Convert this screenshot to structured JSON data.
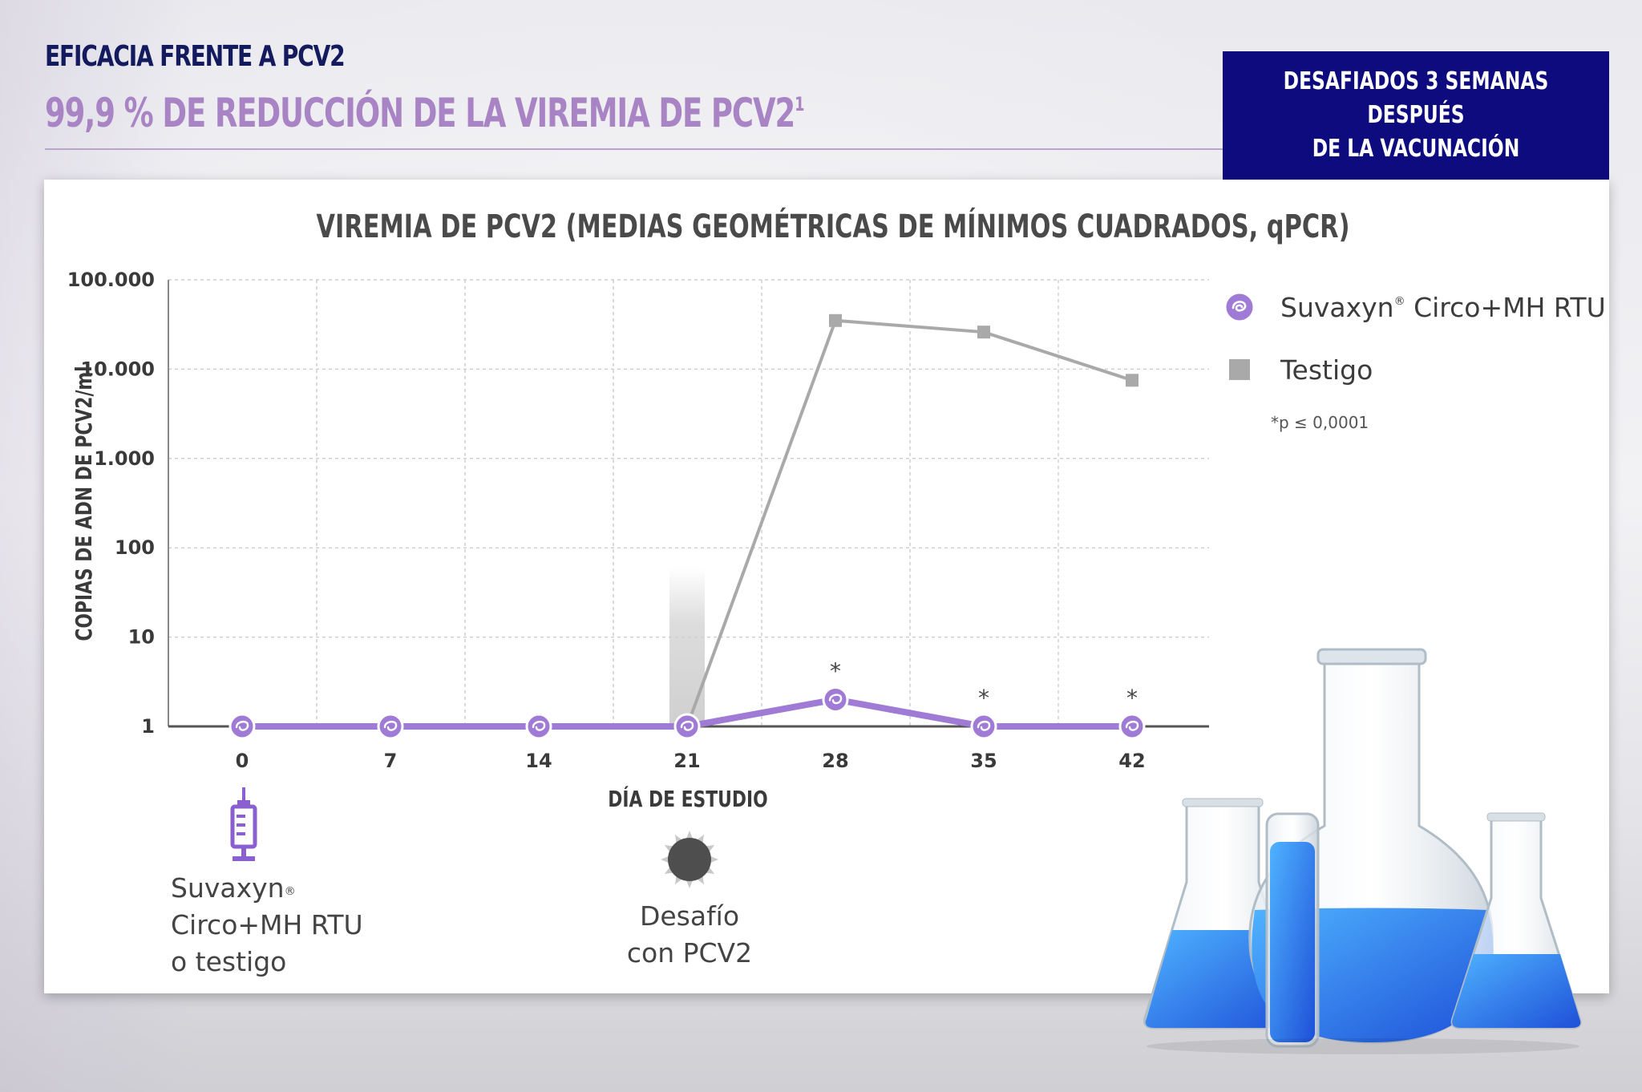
{
  "header": {
    "title": "EFICACIA FRENTE A PCV2",
    "headline": "99,9 % DE REDUCCIÓN DE LA VIREMIA DE PCV2",
    "headline_sup": "1"
  },
  "badge": {
    "text": "DESAFIADOS 3 SEMANAS DESPUÉS\nDE LA VACUNACIÓN"
  },
  "colors": {
    "navy": "#0d0b7e",
    "purple": "#a07bd6",
    "gray_series": "#a9a9a9"
  },
  "legend": {
    "suvaxyn_label": "Suvaxyn",
    "suvaxyn_reg": "®",
    "suvaxyn_rest": " Circo+MH RTU",
    "control_label": "Testigo",
    "footnote": "*p ≤ 0,0001"
  },
  "notes": {
    "vaccine_line1": "Suvaxyn",
    "vaccine_reg": "®",
    "vaccine_line2": "Circo+MH RTU",
    "vaccine_line3": "o testigo",
    "challenge_line1": "Desafío",
    "challenge_line2": "con PCV2",
    "syringe_icon": "syringe-icon",
    "virus_icon": "virus-icon"
  },
  "chart_data": {
    "type": "line",
    "title": "VIREMIA DE PCV2 (MEDIAS GEOMÉTRICAS DE MÍNIMOS CUADRADOS, qPCR)",
    "xlabel": "DÍA DE ESTUDIO",
    "ylabel": "COPIAS DE ADN DE PCV2/ml",
    "yscale": "log",
    "ylim": [
      1,
      100000
    ],
    "y_ticks": [
      {
        "value": 1,
        "label": "1"
      },
      {
        "value": 10,
        "label": "10"
      },
      {
        "value": 100,
        "label": "100"
      },
      {
        "value": 1000,
        "label": "1.000"
      },
      {
        "value": 10000,
        "label": "10.000"
      },
      {
        "value": 100000,
        "label": "100.000"
      }
    ],
    "x": [
      0,
      7,
      14,
      21,
      28,
      35,
      42
    ],
    "x_labels": [
      "0",
      "7",
      "14",
      "21",
      "28",
      "35",
      "42"
    ],
    "challenge_day": 21,
    "grid": true,
    "series": [
      {
        "name": "Testigo",
        "marker": "square",
        "values": [
          null,
          null,
          null,
          1,
          35000,
          26000,
          7500
        ]
      },
      {
        "name": "Suvaxyn® Circo+MH RTU",
        "marker": "circle",
        "values": [
          1,
          1,
          1,
          1,
          2,
          1,
          1
        ]
      }
    ],
    "significance": [
      {
        "x": 28,
        "label": "*"
      },
      {
        "x": 35,
        "label": "*"
      },
      {
        "x": 42,
        "label": "*"
      }
    ]
  }
}
